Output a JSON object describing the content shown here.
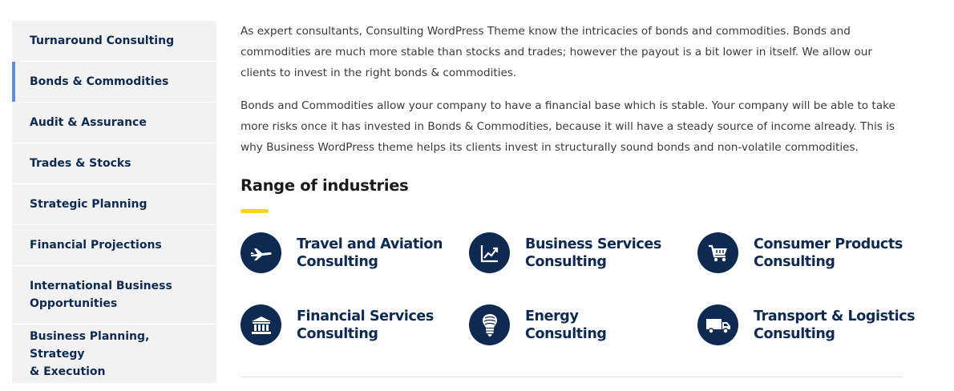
{
  "sidebar": {
    "items": [
      {
        "label": "Turnaround Consulting"
      },
      {
        "label": "Bonds & Commodities"
      },
      {
        "label": "Audit & Assurance"
      },
      {
        "label": "Trades & Stocks"
      },
      {
        "label": "Strategic Planning"
      },
      {
        "label": "Financial Projections"
      },
      {
        "label_line1": "International Business",
        "label_line2": "Opportunities"
      },
      {
        "label_line1": "Business Planning, Strategy",
        "label_line2": "& Execution"
      }
    ],
    "active_index": 1,
    "active_color": "#5b8fe0"
  },
  "main": {
    "paragraphs": [
      "As expert consultants, Consulting WordPress Theme know the intricacies of bonds and commodities. Bonds and commodities are much more stable than stocks and trades; however the payout is a bit lower in itself. We allow our clients to invest in the right bonds & commodities.",
      "Bonds and Commodities allow your company to have a financial base which is stable. Your company will be able to take more risks once it has invested in Bonds & Commodities, because it will have a steady source of income already. This is why Business WordPress theme helps its clients invest in structurally sound bonds and non-volatile commodities."
    ],
    "section_title": "Range of industries",
    "industries": [
      {
        "line1": "Travel and Aviation",
        "line2": "Consulting",
        "icon": "airplane-icon"
      },
      {
        "line1": "Business Services",
        "line2": "Consulting",
        "icon": "chart-trend-icon"
      },
      {
        "line1": "Consumer Products",
        "line2": "Consulting",
        "icon": "shopping-cart-icon"
      },
      {
        "line1": "Financial Services",
        "line2": "Consulting",
        "icon": "bank-icon"
      },
      {
        "line1": "Energy",
        "line2": "Consulting",
        "icon": "lightbulb-icon"
      },
      {
        "line1": "Transport & Logistics",
        "line2": "Consulting",
        "icon": "truck-icon"
      }
    ]
  },
  "colors": {
    "brand_navy": "#0e2a52",
    "accent_yellow": "#f7d417",
    "sidebar_bg": "#f2f2f2"
  }
}
